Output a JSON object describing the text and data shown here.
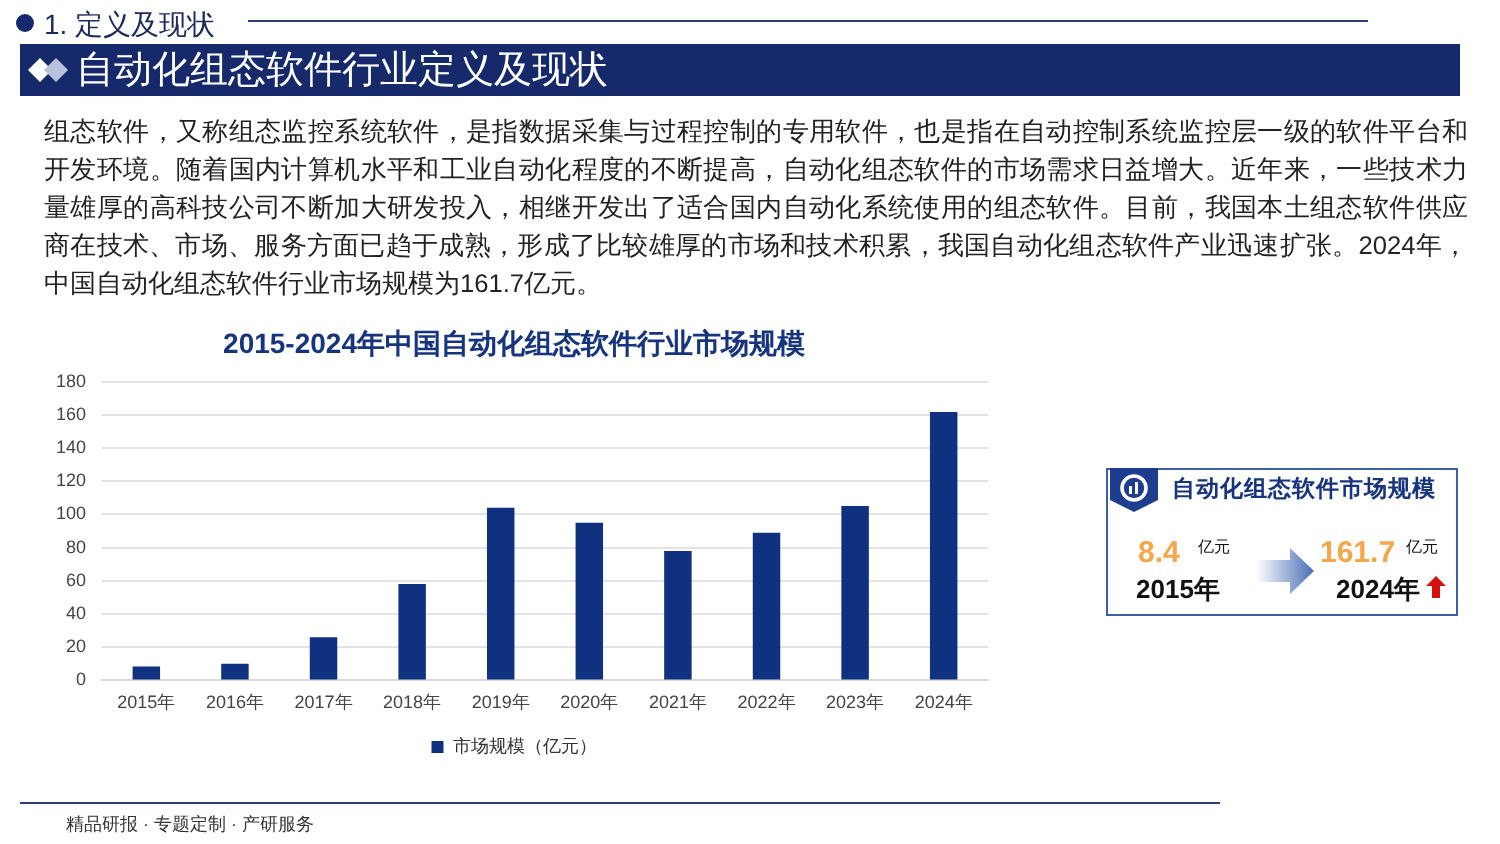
{
  "chart_data": [
    {
      "type": "bar",
      "title": "2015-2024年中国自动化组态软件行业市场规模",
      "categories": [
        "2015年",
        "2016年",
        "2017年",
        "2018年",
        "2019年",
        "2020年",
        "2021年",
        "2022年",
        "2023年",
        "2024年"
      ],
      "series": [
        {
          "name": "市场规模（亿元）",
          "color": "#10317f",
          "values": [
            8.4,
            10,
            26,
            58,
            104,
            95,
            78,
            89,
            105,
            161.7
          ]
        }
      ],
      "ylim": [
        0,
        180
      ],
      "yticks": [
        0,
        20,
        40,
        60,
        80,
        100,
        120,
        140,
        160,
        180
      ],
      "grid": "y",
      "legend": "bottom",
      "annotations": [
        "1. 定义及现状",
        "自动化组态软件行业定义及现状",
        "组态软件，又称组态监控系统软件，是指数据采集与过程控制的专用软件，也是指在自动控制系统监控层一级的软件平台和开发环境。随着国内计算机水平和工业自动化程度的不断提高，自动化组态软件的市场需求日益增大。近年来，一些技术力量雄厚的高科技公司不断加大研发投入，相继开发出了适合国内自动化系统使用的组态软件。目前，我国本土组态软件供应商在技术、市场、服务方面已趋于成熟，形成了比较雄厚的市场和技术积累，我国自动化组态软件产业迅速扩张。2024年，中国自动化组态软件行业市场规模为161.7亿元。",
        "精品研报 · 专题定制 · 产研服务"
      ]
    },
    {
      "type": "other",
      "title": "自动化组态软件市场规模",
      "annotations": [
        "8.4",
        "亿元",
        "2015年",
        "161.7",
        "亿元",
        "2024年"
      ]
    }
  ]
}
